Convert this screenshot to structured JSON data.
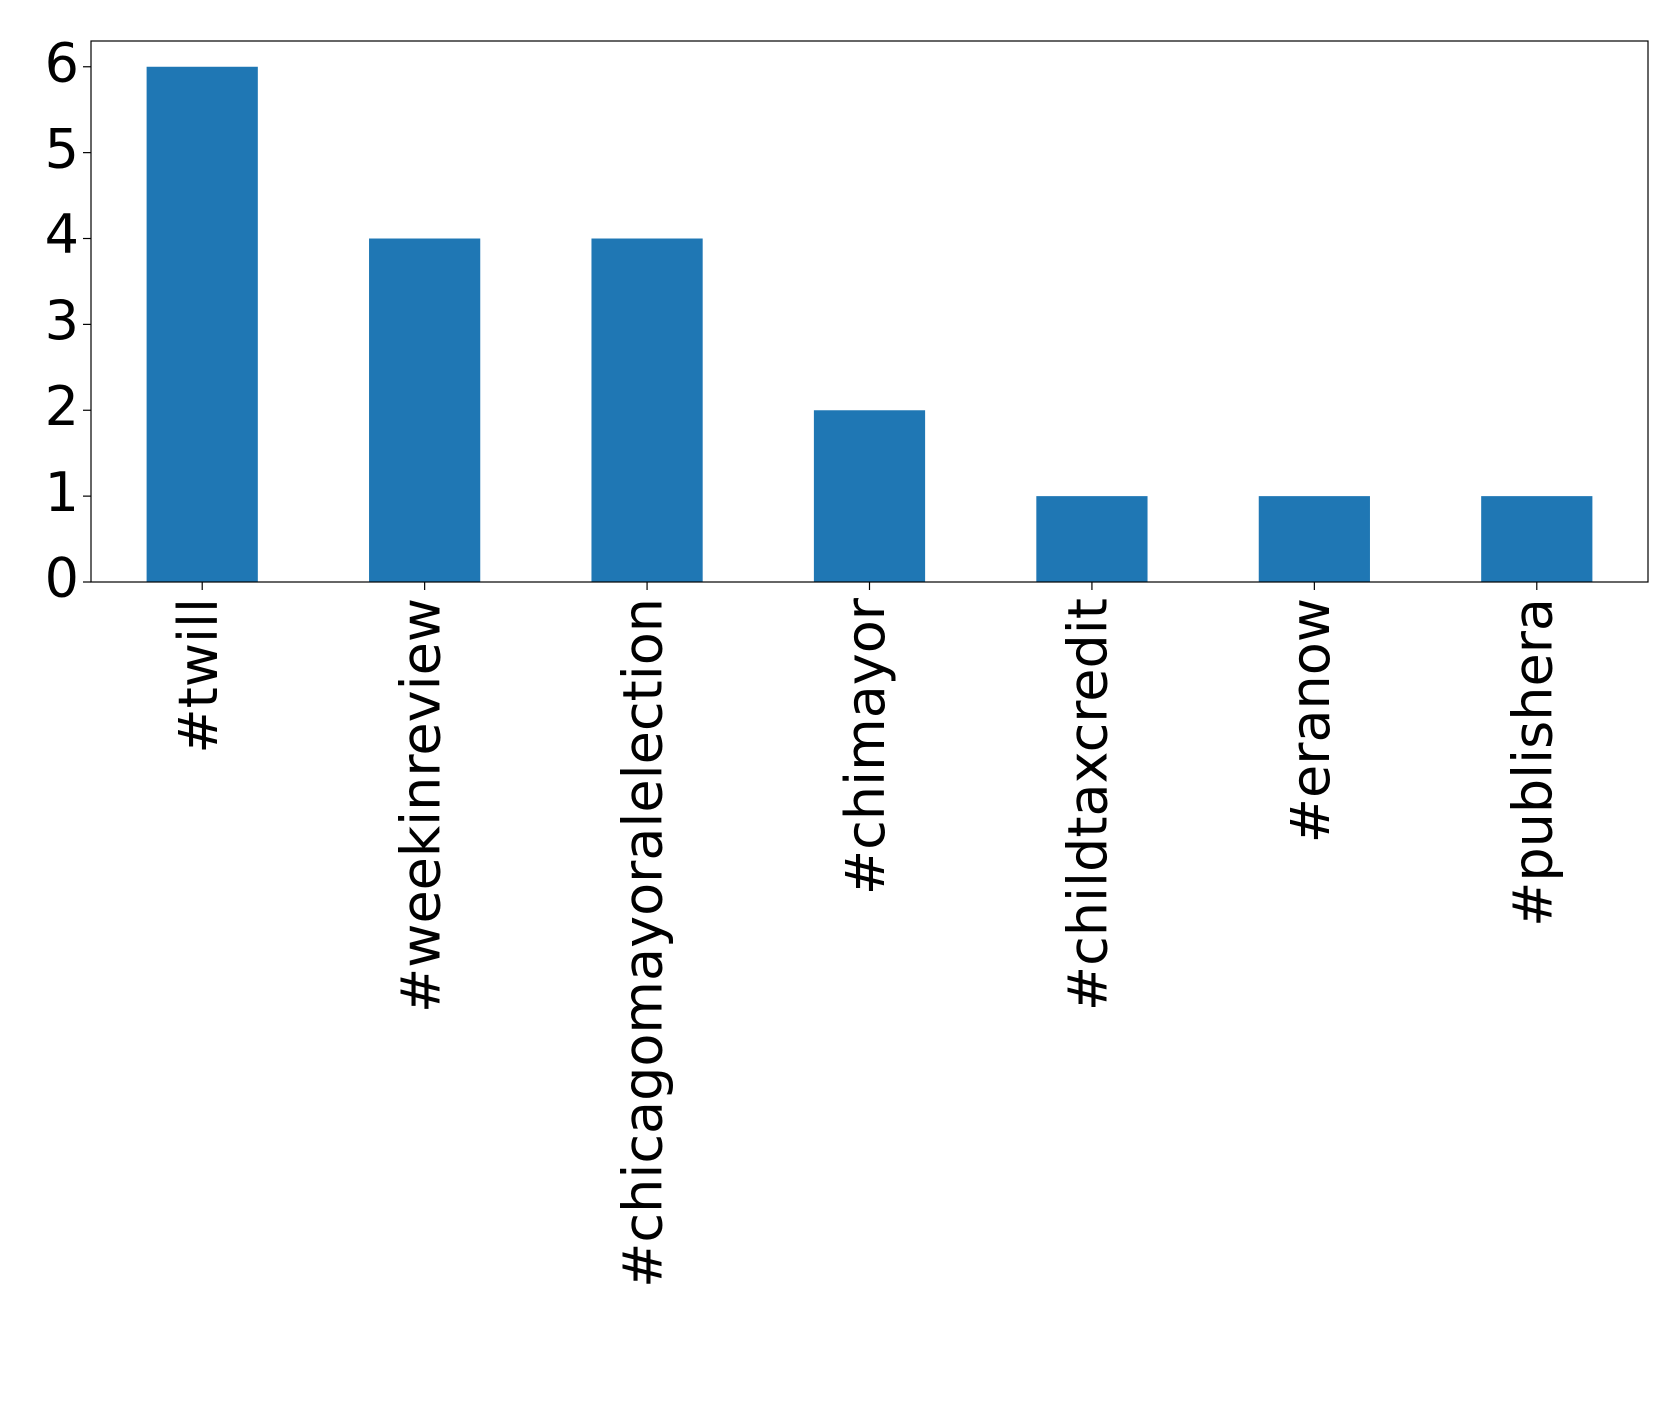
{
  "chart_data": {
    "type": "bar",
    "categories": [
      "#twill",
      "#weekinreview",
      "#chicagomayoralelection",
      "#chimayor",
      "#childtaxcredit",
      "#eranow",
      "#publishera"
    ],
    "values": [
      6,
      4,
      4,
      2,
      1,
      1,
      1
    ],
    "color": "#1f77b4",
    "ylim": [
      0,
      6.3
    ],
    "yticks": [
      0,
      1,
      2,
      3,
      4,
      5,
      6
    ],
    "grid": false
  }
}
